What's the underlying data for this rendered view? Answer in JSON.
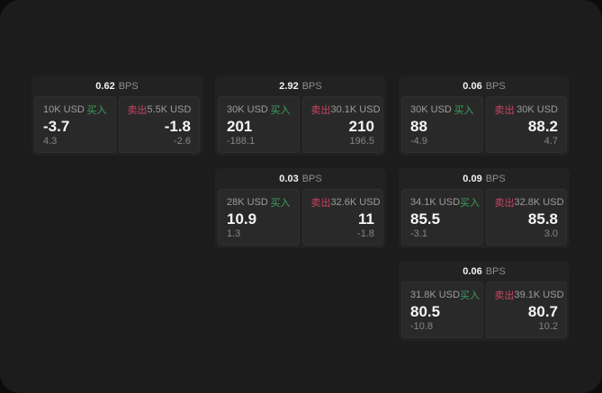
{
  "labels": {
    "bps_unit": "BPS",
    "buy": "买入",
    "sell": "卖出"
  },
  "colors": {
    "buy": "#3f9f58",
    "sell": "#c84560",
    "surface": "#1c1c1d",
    "card": "#222223",
    "subcard": "#29292a"
  },
  "cards": [
    {
      "row": 1,
      "col": 1,
      "bps": "0.62",
      "buy": {
        "amount": "10K USD",
        "value": "-3.7",
        "delta": "4.3"
      },
      "sell": {
        "amount": "5.5K USD",
        "value": "-1.8",
        "delta": "-2.6"
      }
    },
    {
      "row": 1,
      "col": 2,
      "bps": "2.92",
      "buy": {
        "amount": "30K USD",
        "value": "201",
        "delta": "-188.1"
      },
      "sell": {
        "amount": "30.1K USD",
        "value": "210",
        "delta": "196.5"
      }
    },
    {
      "row": 1,
      "col": 3,
      "bps": "0.06",
      "buy": {
        "amount": "30K USD",
        "value": "88",
        "delta": "-4.9"
      },
      "sell": {
        "amount": "30K USD",
        "value": "88.2",
        "delta": "4.7"
      }
    },
    {
      "row": 2,
      "col": 2,
      "bps": "0.03",
      "buy": {
        "amount": "28K USD",
        "value": "10.9",
        "delta": "1.3"
      },
      "sell": {
        "amount": "32.6K USD",
        "value": "11",
        "delta": "-1.8"
      }
    },
    {
      "row": 2,
      "col": 3,
      "bps": "0.09",
      "buy": {
        "amount": "34.1K USD",
        "value": "85.5",
        "delta": "-3.1"
      },
      "sell": {
        "amount": "32.8K USD",
        "value": "85.8",
        "delta": "3.0"
      }
    },
    {
      "row": 3,
      "col": 3,
      "bps": "0.06",
      "buy": {
        "amount": "31.8K USD",
        "value": "80.5",
        "delta": "-10.8"
      },
      "sell": {
        "amount": "39.1K USD",
        "value": "80.7",
        "delta": "10.2"
      }
    }
  ]
}
